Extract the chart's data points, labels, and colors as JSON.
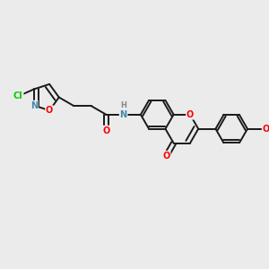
{
  "bg_color": "#ebebeb",
  "bond_color": "#1a1a1a",
  "bond_width": 1.4,
  "atom_colors": {
    "O": "#ff0000",
    "N": "#4488aa",
    "Cl": "#00cc00",
    "H": "#888888",
    "C": "#1a1a1a"
  },
  "figsize": [
    3.0,
    3.0
  ],
  "dpi": 100,
  "xlim": [
    0,
    10
  ],
  "ylim": [
    0,
    10
  ]
}
